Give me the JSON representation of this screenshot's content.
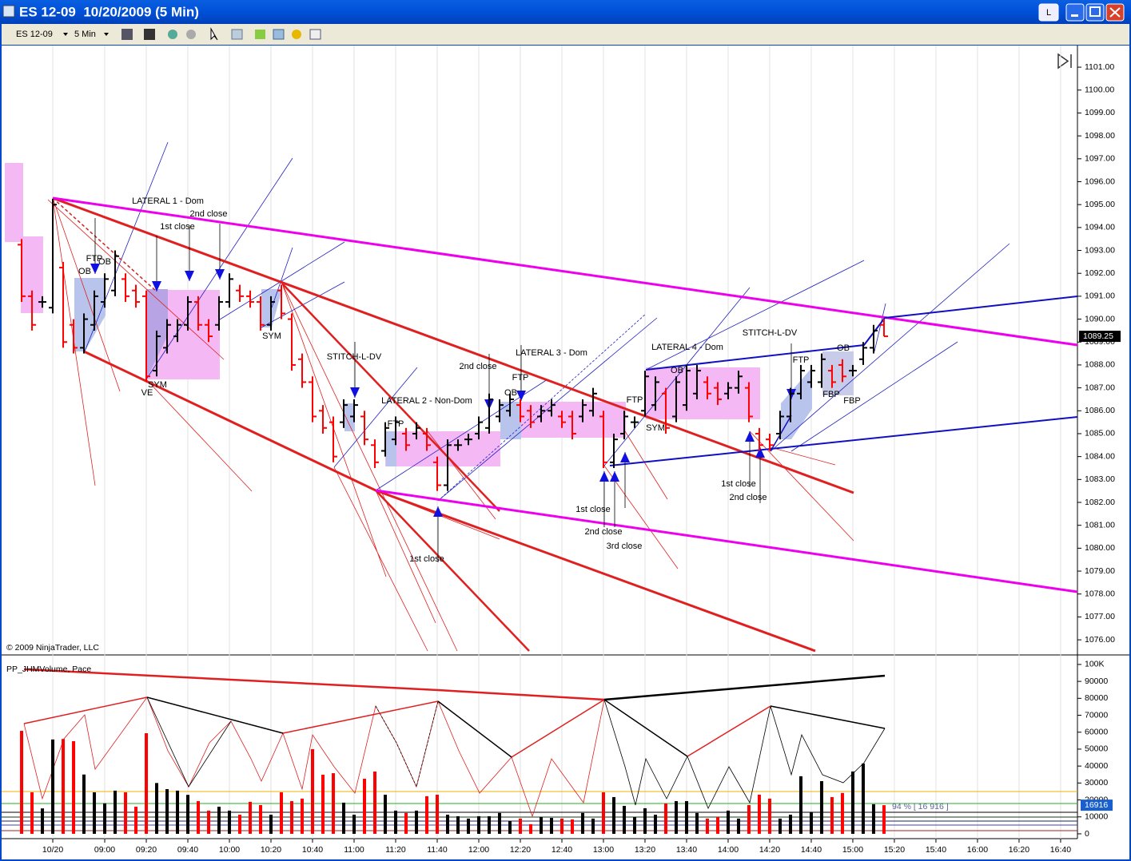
{
  "window": {
    "title": "ES 12-09  10/20/2009 (5 Min)",
    "button": "L"
  },
  "toolbar": {
    "instrument": "ES 12-09",
    "interval": "5 Min"
  },
  "chart_data": [
    {
      "type": "ohlc",
      "copyright": "© 2009 NinjaTrader, LLC",
      "x": [
        500,
        505,
        510,
        515,
        520,
        525,
        530,
        535,
        540,
        545,
        550,
        555,
        560,
        565,
        570,
        575,
        580,
        585,
        590,
        595,
        600,
        605,
        610,
        615,
        620,
        625,
        630,
        635,
        640,
        645,
        650,
        655,
        660,
        665,
        670,
        675,
        680,
        685,
        690,
        695,
        700,
        705,
        710,
        715,
        720,
        725,
        730,
        735,
        740,
        745,
        750,
        755,
        760,
        765,
        770,
        775,
        780,
        785,
        790,
        795,
        800,
        805,
        810,
        815,
        820,
        825,
        830,
        835,
        840,
        845,
        850,
        855,
        860,
        865,
        870,
        875,
        880,
        885,
        890,
        895,
        900,
        905,
        910,
        915
      ],
      "open": [
        1093.25,
        1091,
        1090.75,
        1090.5,
        1092.25,
        1089.75,
        1088.75,
        1089.75,
        1090.75,
        1091.25,
        1091.75,
        1091.25,
        1091,
        1087.75,
        1088.75,
        1089.25,
        1089.75,
        1090.75,
        1089.75,
        1089.75,
        1090.75,
        1091.25,
        1091,
        1090.75,
        1089.75,
        1091.25,
        1090,
        1088.25,
        1087.25,
        1086,
        1085.5,
        1085.5,
        1085.75,
        1085.75,
        1084.5,
        1084.25,
        1084.75,
        1085,
        1085,
        1085,
        1083.75,
        1082.75,
        1084.5,
        1084.75,
        1085,
        1085.25,
        1085.75,
        1086,
        1086.25,
        1086,
        1085.75,
        1086,
        1085.75,
        1085.75,
        1085.75,
        1086,
        1085.75,
        1083.75,
        1085,
        1085.5,
        1086,
        1086.25,
        1086.75,
        1085.75,
        1086.25,
        1086.75,
        1087.25,
        1087,
        1086.75,
        1087,
        1087,
        1085,
        1084.75,
        1085,
        1085.75,
        1086.75,
        1087.25,
        1087.25,
        1087.75,
        1088,
        1087.75,
        1088.25,
        1088.75,
        1089.75
      ],
      "high": [
        1093.5,
        1091.25,
        1091,
        1095.25,
        1092.5,
        1090,
        1090.25,
        1091.25,
        1092,
        1093,
        1092,
        1091.5,
        1091.25,
        1089.5,
        1090,
        1090,
        1091,
        1091,
        1090,
        1091,
        1092,
        1091.5,
        1091.25,
        1091,
        1091,
        1091.5,
        1090.25,
        1088.5,
        1087.5,
        1086.25,
        1085.75,
        1086.5,
        1086.5,
        1086,
        1084.75,
        1085.5,
        1085.75,
        1085.25,
        1085.5,
        1085.25,
        1084,
        1084.75,
        1084.75,
        1085,
        1085.75,
        1086.75,
        1086.5,
        1086.75,
        1086.5,
        1086.25,
        1086.25,
        1086.5,
        1086,
        1086,
        1086.5,
        1087,
        1086,
        1085,
        1086,
        1085.75,
        1087.75,
        1087.5,
        1087,
        1087.5,
        1088,
        1088,
        1087.5,
        1087.25,
        1087.25,
        1087.75,
        1087.25,
        1085.25,
        1085,
        1086,
        1087,
        1088,
        1088,
        1088.5,
        1088,
        1088.25,
        1088,
        1089,
        1089.75,
        1090
      ],
      "low": [
        1090.75,
        1089.5,
        1090.5,
        1090.25,
        1088.75,
        1088.5,
        1088.5,
        1089.5,
        1090.5,
        1091,
        1090.75,
        1090.5,
        1087.25,
        1087.5,
        1088.5,
        1089,
        1089.5,
        1089.5,
        1089,
        1089.5,
        1090.5,
        1090.75,
        1090.5,
        1089.5,
        1089.5,
        1090,
        1087.75,
        1087,
        1085.5,
        1085,
        1083.75,
        1085.25,
        1085.5,
        1084.5,
        1083.5,
        1084,
        1084.5,
        1084.25,
        1084.75,
        1084.25,
        1082.5,
        1082.5,
        1084.25,
        1084.5,
        1084.75,
        1085,
        1085.5,
        1085.75,
        1085.5,
        1085.25,
        1085.5,
        1085.75,
        1085.25,
        1084.75,
        1085.5,
        1085.75,
        1083.5,
        1083.5,
        1084.75,
        1085.25,
        1085.75,
        1086,
        1085,
        1085.5,
        1086,
        1086.5,
        1086.5,
        1086.25,
        1086.5,
        1086.75,
        1085.5,
        1084.25,
        1084.25,
        1084.75,
        1085.5,
        1086.5,
        1087,
        1087,
        1087,
        1087.25,
        1087.5,
        1088,
        1088.5,
        1089.25
      ],
      "close": [
        1091,
        1089.75,
        1090.75,
        1095,
        1089,
        1088.75,
        1090,
        1091,
        1091.75,
        1092.75,
        1091,
        1090.75,
        1087.5,
        1089.25,
        1089.75,
        1089.75,
        1090.75,
        1089.75,
        1089.25,
        1090.75,
        1091.75,
        1091,
        1090.75,
        1089.75,
        1090.75,
        1090.25,
        1088,
        1087.25,
        1085.75,
        1085.25,
        1084,
        1086.25,
        1086.25,
        1084.75,
        1083.75,
        1085.25,
        1085.5,
        1084.5,
        1085.25,
        1084.5,
        1082.75,
        1084.5,
        1084.5,
        1084.75,
        1085.5,
        1086.5,
        1086.25,
        1086.5,
        1085.75,
        1085.5,
        1086,
        1086.25,
        1085.5,
        1085,
        1086.25,
        1086.75,
        1083.75,
        1084.75,
        1085.75,
        1085.5,
        1087.5,
        1087.25,
        1085.25,
        1087.25,
        1087.75,
        1087.75,
        1086.75,
        1086.5,
        1087,
        1087.5,
        1085.75,
        1084.5,
        1084.5,
        1085.75,
        1086.75,
        1087.75,
        1087.75,
        1088.25,
        1087.25,
        1087.5,
        1087.75,
        1088.75,
        1089.5,
        1089.25
      ],
      "colors": {
        "up": "#000000",
        "down": "#ff0000"
      },
      "xlim": [
        489.6,
        1008.1
      ],
      "ylim": [
        1075.41,
        1101.91
      ],
      "yticks": [
        {
          "value": 1076,
          "label": "1076.00"
        },
        {
          "value": 1077,
          "label": "1077.00"
        },
        {
          "value": 1078,
          "label": "1078.00"
        },
        {
          "value": 1079,
          "label": "1079.00"
        },
        {
          "value": 1080,
          "label": "1080.00"
        },
        {
          "value": 1081,
          "label": "1081.00"
        },
        {
          "value": 1082,
          "label": "1082.00"
        },
        {
          "value": 1083,
          "label": "1083.00"
        },
        {
          "value": 1084,
          "label": "1084.00"
        },
        {
          "value": 1085,
          "label": "1085.00"
        },
        {
          "value": 1086,
          "label": "1086.00"
        },
        {
          "value": 1087,
          "label": "1087.00"
        },
        {
          "value": 1088,
          "label": "1088.00"
        },
        {
          "value": 1089,
          "label": "1089.00"
        },
        {
          "value": 1090,
          "label": "1090.00"
        },
        {
          "value": 1091,
          "label": "1091.00"
        },
        {
          "value": 1092,
          "label": "1092.00"
        },
        {
          "value": 1093,
          "label": "1093.00"
        },
        {
          "value": 1094,
          "label": "1094.00"
        },
        {
          "value": 1095,
          "label": "1095.00"
        },
        {
          "value": 1096,
          "label": "1096.00"
        },
        {
          "value": 1097,
          "label": "1097.00"
        },
        {
          "value": 1098,
          "label": "1098.00"
        },
        {
          "value": 1099,
          "label": "1099.00"
        },
        {
          "value": 1100,
          "label": "1100.00"
        },
        {
          "value": 1101,
          "label": "1101.00"
        }
      ],
      "xticks": [
        {
          "value": 515,
          "label": "10/20"
        },
        {
          "value": 540,
          "label": "09:00"
        },
        {
          "value": 560,
          "label": "09:20"
        },
        {
          "value": 580,
          "label": "09:40"
        },
        {
          "value": 600,
          "label": "10:00"
        },
        {
          "value": 620,
          "label": "10:20"
        },
        {
          "value": 640,
          "label": "10:40"
        },
        {
          "value": 660,
          "label": "11:00"
        },
        {
          "value": 680,
          "label": "11:20"
        },
        {
          "value": 700,
          "label": "11:40"
        },
        {
          "value": 720,
          "label": "12:00"
        },
        {
          "value": 740,
          "label": "12:20"
        },
        {
          "value": 760,
          "label": "12:40"
        },
        {
          "value": 780,
          "label": "13:00"
        },
        {
          "value": 800,
          "label": "13:20"
        },
        {
          "value": 820,
          "label": "13:40"
        },
        {
          "value": 840,
          "label": "14:00"
        },
        {
          "value": 860,
          "label": "14:20"
        },
        {
          "value": 880,
          "label": "14:40"
        },
        {
          "value": 900,
          "label": "15:00"
        },
        {
          "value": 920,
          "label": "15:20"
        },
        {
          "value": 940,
          "label": "15:40"
        },
        {
          "value": 960,
          "label": "16:00"
        },
        {
          "value": 980,
          "label": "16:20"
        },
        {
          "value": 1000,
          "label": "16:40"
        }
      ],
      "annotations": [
        "LATERAL 1 - Dom",
        "1st close",
        "2nd close",
        "FTP",
        "OB",
        "OB",
        "SYM",
        "VE",
        "SYM",
        "STITCH-L-DV",
        "LATERAL 2 - Non-Dom",
        "FTP",
        "2nd close",
        "FTP",
        "OB",
        "LATERAL 3 - Dom",
        "1st close",
        "LATERAL 4 - Dom",
        "OB",
        "FTP",
        "SYM",
        "1st close",
        "2nd close",
        "3rd close",
        "STITCH-L-DV",
        "FTP",
        "OB",
        "FBP",
        "FBP",
        "1st close",
        "2nd close"
      ]
    },
    {
      "type": "bar",
      "title": "PP_JHMVolume, Pace",
      "pace_label": "94 % [ 16 916 ]",
      "values": [
        60800,
        24500,
        15000,
        55700,
        56000,
        54700,
        35000,
        24500,
        18000,
        25500,
        24500,
        16000,
        59400,
        30000,
        26400,
        25500,
        23000,
        19300,
        13700,
        16000,
        13700,
        11300,
        18900,
        17000,
        11300,
        24500,
        19300,
        20800,
        50000,
        34900,
        35800,
        18400,
        11300,
        32500,
        36800,
        23100,
        13700,
        12300,
        13700,
        22200,
        23100,
        11300,
        10400,
        9000,
        10400,
        10400,
        12300,
        7500,
        9000,
        5700,
        9900,
        9400,
        9000,
        8500,
        12300,
        9000,
        24500,
        21700,
        16500,
        9900,
        15100,
        11300,
        17900,
        19300,
        19300,
        12300,
        9000,
        9900,
        13700,
        9000,
        17000,
        23100,
        20800,
        9000,
        11300,
        34000,
        12700,
        31100,
        21700,
        24100,
        36800,
        41500,
        17500,
        16916
      ],
      "ylim": [
        -1900,
        104200
      ],
      "yticks": [
        0,
        10000,
        20000,
        30000,
        40000,
        50000,
        60000,
        70000,
        80000,
        90000,
        {
          "value": 100000,
          "label": "100K"
        }
      ]
    }
  ]
}
